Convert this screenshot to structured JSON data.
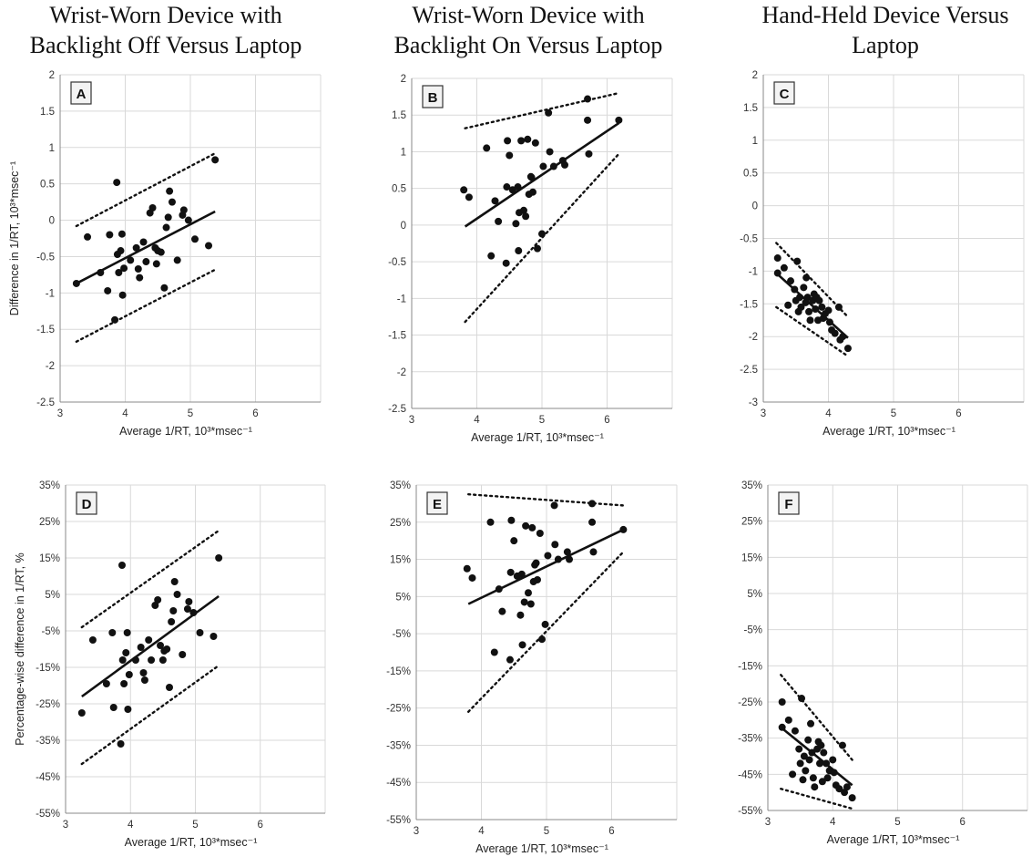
{
  "column_titles": [
    [
      "Wrist-Worn Device with",
      "Backlight Off Versus Laptop"
    ],
    [
      "Wrist-Worn Device with",
      "Backlight On Versus Laptop"
    ],
    [
      "Hand-Held Device Versus",
      "Laptop"
    ]
  ],
  "colors": {
    "points": "#111111",
    "regression": "#111111",
    "limits": "#111111",
    "grid": "#d9d9d9",
    "axis": "#888888"
  },
  "chart_data": [
    {
      "panel": "A",
      "type": "scatter",
      "xlabel": "Average 1/RT, 10³*msec⁻¹",
      "ylabel": "Difference in 1/RT, 10³*msec⁻¹",
      "xlim": [
        3,
        7
      ],
      "ylim": [
        -2.5,
        2
      ],
      "xticks": [
        3,
        4,
        5,
        6
      ],
      "yticks": [
        -2.5,
        -2,
        -1.5,
        -1,
        -0.5,
        0,
        0.5,
        1,
        1.5,
        2
      ],
      "ytick_labels": [
        "-2.5",
        "-2",
        "-1.5",
        "-1",
        "-0.5",
        "0",
        "0.5",
        "1",
        "1.5",
        "2"
      ],
      "grid": true,
      "points": [
        [
          3.25,
          -0.87
        ],
        [
          3.42,
          -0.23
        ],
        [
          3.62,
          -0.72
        ],
        [
          3.73,
          -0.97
        ],
        [
          3.76,
          -0.2
        ],
        [
          3.84,
          -1.37
        ],
        [
          3.87,
          0.52
        ],
        [
          3.88,
          -0.47
        ],
        [
          3.9,
          -0.72
        ],
        [
          3.93,
          -0.42
        ],
        [
          3.95,
          -0.19
        ],
        [
          3.96,
          -1.03
        ],
        [
          3.98,
          -0.66
        ],
        [
          4.08,
          -0.55
        ],
        [
          4.17,
          -0.38
        ],
        [
          4.2,
          -0.67
        ],
        [
          4.22,
          -0.79
        ],
        [
          4.28,
          -0.3
        ],
        [
          4.32,
          -0.57
        ],
        [
          4.38,
          0.1
        ],
        [
          4.42,
          0.17
        ],
        [
          4.46,
          -0.38
        ],
        [
          4.48,
          -0.6
        ],
        [
          4.5,
          -0.42
        ],
        [
          4.55,
          -0.44
        ],
        [
          4.6,
          -0.93
        ],
        [
          4.63,
          -0.1
        ],
        [
          4.66,
          0.04
        ],
        [
          4.68,
          0.4
        ],
        [
          4.72,
          0.25
        ],
        [
          4.8,
          -0.55
        ],
        [
          4.88,
          0.07
        ],
        [
          4.9,
          0.14
        ],
        [
          4.97,
          0.0
        ],
        [
          5.07,
          -0.26
        ],
        [
          5.28,
          -0.35
        ],
        [
          5.38,
          0.83
        ]
      ],
      "regression": [
        [
          3.25,
          -0.87
        ],
        [
          5.38,
          0.12
        ]
      ],
      "limits_upper": [
        [
          3.25,
          -0.08
        ],
        [
          5.38,
          0.92
        ]
      ],
      "limits_lower": [
        [
          3.25,
          -1.67
        ],
        [
          5.38,
          -0.68
        ]
      ]
    },
    {
      "panel": "B",
      "type": "scatter",
      "xlabel": "Average 1/RT, 10³*msec⁻¹",
      "ylabel": "",
      "xlim": [
        3,
        7
      ],
      "ylim": [
        -2.5,
        2
      ],
      "xticks": [
        3,
        4,
        5,
        6
      ],
      "yticks": [
        -2.5,
        -2,
        -1.5,
        -1,
        -0.5,
        0,
        0.5,
        1,
        1.5,
        2
      ],
      "ytick_labels": [
        "-2.5",
        "-2",
        "-1.5",
        "-1",
        "-0.5",
        "0",
        "0.5",
        "1",
        "1.5",
        "2"
      ],
      "grid": true,
      "points": [
        [
          3.8,
          0.48
        ],
        [
          3.88,
          0.38
        ],
        [
          4.15,
          1.05
        ],
        [
          4.22,
          -0.42
        ],
        [
          4.28,
          0.33
        ],
        [
          4.33,
          0.05
        ],
        [
          4.45,
          -0.52
        ],
        [
          4.46,
          0.52
        ],
        [
          4.47,
          1.15
        ],
        [
          4.5,
          0.95
        ],
        [
          4.55,
          0.48
        ],
        [
          4.6,
          0.02
        ],
        [
          4.63,
          0.52
        ],
        [
          4.64,
          -0.35
        ],
        [
          4.65,
          0.17
        ],
        [
          4.68,
          1.15
        ],
        [
          4.72,
          0.2
        ],
        [
          4.75,
          0.12
        ],
        [
          4.78,
          1.17
        ],
        [
          4.8,
          0.42
        ],
        [
          4.83,
          0.66
        ],
        [
          4.84,
          0.65
        ],
        [
          4.86,
          0.45
        ],
        [
          4.9,
          1.12
        ],
        [
          4.93,
          -0.32
        ],
        [
          5.0,
          -0.12
        ],
        [
          5.02,
          0.8
        ],
        [
          5.1,
          1.53
        ],
        [
          5.12,
          1.0
        ],
        [
          5.18,
          0.8
        ],
        [
          5.32,
          0.88
        ],
        [
          5.35,
          0.82
        ],
        [
          5.7,
          1.72
        ],
        [
          5.7,
          1.43
        ],
        [
          5.72,
          0.97
        ],
        [
          6.18,
          1.43
        ]
      ],
      "regression": [
        [
          3.82,
          -0.02
        ],
        [
          6.18,
          1.39
        ]
      ],
      "limits_upper": [
        [
          3.82,
          1.32
        ],
        [
          6.18,
          1.8
        ]
      ],
      "limits_lower": [
        [
          3.82,
          -1.32
        ],
        [
          6.18,
          0.97
        ]
      ]
    },
    {
      "panel": "C",
      "type": "scatter",
      "xlabel": "Average 1/RT, 10³*msec⁻¹",
      "ylabel": "",
      "xlim": [
        3,
        7
      ],
      "ylim": [
        -3,
        2
      ],
      "xticks": [
        3,
        4,
        5,
        6
      ],
      "yticks": [
        -3,
        -2.5,
        -2,
        -1.5,
        -1,
        -0.5,
        0,
        0.5,
        1,
        1.5,
        2
      ],
      "ytick_labels": [
        "-3",
        "-2.5",
        "-2",
        "-1.5",
        "-1",
        "-0.5",
        "0",
        "0.5",
        "1",
        "1.5",
        "2"
      ],
      "grid": true,
      "points": [
        [
          3.22,
          -0.8
        ],
        [
          3.22,
          -1.03
        ],
        [
          3.32,
          -0.95
        ],
        [
          3.38,
          -1.52
        ],
        [
          3.42,
          -1.15
        ],
        [
          3.48,
          -1.28
        ],
        [
          3.5,
          -1.45
        ],
        [
          3.52,
          -0.85
        ],
        [
          3.54,
          -1.62
        ],
        [
          3.56,
          -1.4
        ],
        [
          3.58,
          -1.55
        ],
        [
          3.62,
          -1.25
        ],
        [
          3.65,
          -1.48
        ],
        [
          3.66,
          -1.1
        ],
        [
          3.68,
          -1.4
        ],
        [
          3.7,
          -1.62
        ],
        [
          3.72,
          -1.75
        ],
        [
          3.76,
          -1.45
        ],
        [
          3.78,
          -1.35
        ],
        [
          3.8,
          -1.58
        ],
        [
          3.82,
          -1.4
        ],
        [
          3.84,
          -1.75
        ],
        [
          3.86,
          -1.45
        ],
        [
          3.9,
          -1.55
        ],
        [
          3.92,
          -1.72
        ],
        [
          3.95,
          -1.65
        ],
        [
          4.0,
          -1.6
        ],
        [
          4.02,
          -1.78
        ],
        [
          4.05,
          -1.9
        ],
        [
          4.1,
          -1.95
        ],
        [
          4.16,
          -1.55
        ],
        [
          4.18,
          -2.05
        ],
        [
          4.22,
          -2.0
        ],
        [
          4.3,
          -2.18
        ]
      ],
      "regression": [
        [
          3.2,
          -1.03
        ],
        [
          4.3,
          -2.02
        ]
      ],
      "limits_upper": [
        [
          3.2,
          -0.57
        ],
        [
          4.3,
          -1.7
        ]
      ],
      "limits_lower": [
        [
          3.2,
          -1.55
        ],
        [
          4.3,
          -2.3
        ]
      ]
    },
    {
      "panel": "D",
      "type": "scatter",
      "xlabel": "Average 1/RT, 10³*msec⁻¹",
      "ylabel": "Percentage-wise difference in 1/RT, %",
      "xlim": [
        3,
        7
      ],
      "ylim": [
        -55,
        35
      ],
      "xticks": [
        3,
        4,
        5,
        6
      ],
      "yticks": [
        -55,
        -45,
        -35,
        -25,
        -15,
        -5,
        5,
        15,
        25,
        35
      ],
      "ytick_labels": [
        "-55%",
        "-45%",
        "-35%",
        "-25%",
        "-15%",
        "-5%",
        "5%",
        "15%",
        "25%",
        "35%"
      ],
      "grid": true,
      "points": [
        [
          3.25,
          -27.5
        ],
        [
          3.42,
          -7.5
        ],
        [
          3.63,
          -19.5
        ],
        [
          3.72,
          -5.5
        ],
        [
          3.74,
          -26
        ],
        [
          3.85,
          -36
        ],
        [
          3.87,
          13
        ],
        [
          3.88,
          -13
        ],
        [
          3.9,
          -19.5
        ],
        [
          3.93,
          -11
        ],
        [
          3.95,
          -5.5
        ],
        [
          3.96,
          -26.5
        ],
        [
          3.98,
          -17
        ],
        [
          4.08,
          -13
        ],
        [
          4.16,
          -9.5
        ],
        [
          4.2,
          -16.5
        ],
        [
          4.22,
          -18.5
        ],
        [
          4.28,
          -7.5
        ],
        [
          4.32,
          -13
        ],
        [
          4.38,
          2
        ],
        [
          4.42,
          3.5
        ],
        [
          4.46,
          -9
        ],
        [
          4.5,
          -13
        ],
        [
          4.52,
          -10.5
        ],
        [
          4.56,
          -10
        ],
        [
          4.6,
          -20.5
        ],
        [
          4.63,
          -2.5
        ],
        [
          4.66,
          0.5
        ],
        [
          4.68,
          8.5
        ],
        [
          4.72,
          5
        ],
        [
          4.8,
          -11.5
        ],
        [
          4.88,
          1
        ],
        [
          4.9,
          3
        ],
        [
          4.97,
          0
        ],
        [
          5.07,
          -5.5
        ],
        [
          5.28,
          -6.5
        ],
        [
          5.36,
          15
        ]
      ],
      "regression": [
        [
          3.25,
          -23
        ],
        [
          5.36,
          4.5
        ]
      ],
      "limits_upper": [
        [
          3.25,
          -4
        ],
        [
          5.36,
          22.5
        ]
      ],
      "limits_lower": [
        [
          3.25,
          -41.5
        ],
        [
          5.36,
          -14.5
        ]
      ]
    },
    {
      "panel": "E",
      "type": "scatter",
      "xlabel": "Average 1/RT, 10³*msec⁻¹",
      "ylabel": "",
      "xlim": [
        3,
        7
      ],
      "ylim": [
        -55,
        35
      ],
      "xticks": [
        3,
        4,
        5,
        6
      ],
      "yticks": [
        -55,
        -45,
        -35,
        -25,
        -15,
        -5,
        5,
        15,
        25,
        35
      ],
      "ytick_labels": [
        "-55%",
        "-45%",
        "-35%",
        "-25%",
        "-15%",
        "-5%",
        "5%",
        "15%",
        "25%",
        "35%"
      ],
      "grid": true,
      "points": [
        [
          3.78,
          12.5
        ],
        [
          3.86,
          10
        ],
        [
          4.14,
          25
        ],
        [
          4.2,
          -10
        ],
        [
          4.27,
          7
        ],
        [
          4.32,
          1
        ],
        [
          4.44,
          -12
        ],
        [
          4.45,
          11.5
        ],
        [
          4.46,
          25.5
        ],
        [
          4.5,
          20
        ],
        [
          4.55,
          10.5
        ],
        [
          4.6,
          0
        ],
        [
          4.62,
          11
        ],
        [
          4.63,
          -8
        ],
        [
          4.66,
          3.5
        ],
        [
          4.68,
          24
        ],
        [
          4.72,
          6
        ],
        [
          4.76,
          3
        ],
        [
          4.78,
          23.5
        ],
        [
          4.8,
          9
        ],
        [
          4.82,
          13.5
        ],
        [
          4.84,
          14
        ],
        [
          4.86,
          9.5
        ],
        [
          4.9,
          22
        ],
        [
          4.93,
          -6.5
        ],
        [
          4.98,
          -2.5
        ],
        [
          5.02,
          16
        ],
        [
          5.12,
          29.5
        ],
        [
          5.13,
          19
        ],
        [
          5.18,
          15
        ],
        [
          5.32,
          17
        ],
        [
          5.35,
          15
        ],
        [
          5.7,
          30
        ],
        [
          5.7,
          25
        ],
        [
          5.72,
          17
        ],
        [
          6.18,
          23
        ]
      ],
      "regression": [
        [
          3.8,
          3
        ],
        [
          6.18,
          23
        ]
      ],
      "limits_upper": [
        [
          3.8,
          32.5
        ],
        [
          6.18,
          29.5
        ]
      ],
      "limits_lower": [
        [
          3.8,
          -26
        ],
        [
          6.18,
          17
        ]
      ]
    },
    {
      "panel": "F",
      "type": "scatter",
      "xlabel": "Average 1/RT, 10³*msec⁻¹",
      "ylabel": "",
      "xlim": [
        3,
        7
      ],
      "ylim": [
        -55,
        35
      ],
      "xticks": [
        3,
        4,
        5,
        6
      ],
      "yticks": [
        -55,
        -45,
        -35,
        -25,
        -15,
        -5,
        5,
        15,
        25,
        35
      ],
      "ytick_labels": [
        "-55%",
        "-45%",
        "-35%",
        "-25%",
        "-15%",
        "-5%",
        "5%",
        "15%",
        "25%",
        "35%"
      ],
      "grid": true,
      "points": [
        [
          3.22,
          -25
        ],
        [
          3.22,
          -32
        ],
        [
          3.32,
          -30
        ],
        [
          3.38,
          -45
        ],
        [
          3.42,
          -33
        ],
        [
          3.48,
          -38
        ],
        [
          3.5,
          -42
        ],
        [
          3.52,
          -24
        ],
        [
          3.54,
          -46.5
        ],
        [
          3.56,
          -40
        ],
        [
          3.58,
          -44
        ],
        [
          3.62,
          -35.5
        ],
        [
          3.64,
          -41
        ],
        [
          3.66,
          -31
        ],
        [
          3.68,
          -39
        ],
        [
          3.7,
          -46
        ],
        [
          3.72,
          -48.5
        ],
        [
          3.76,
          -38
        ],
        [
          3.78,
          -36
        ],
        [
          3.8,
          -42
        ],
        [
          3.82,
          -37
        ],
        [
          3.84,
          -47
        ],
        [
          3.86,
          -39
        ],
        [
          3.9,
          -42
        ],
        [
          3.92,
          -46
        ],
        [
          3.95,
          -44
        ],
        [
          4.0,
          -41
        ],
        [
          4.02,
          -44.5
        ],
        [
          4.05,
          -48
        ],
        [
          4.1,
          -49
        ],
        [
          4.15,
          -37
        ],
        [
          4.18,
          -50
        ],
        [
          4.22,
          -48.5
        ],
        [
          4.3,
          -51.5
        ]
      ],
      "regression": [
        [
          3.2,
          -32
        ],
        [
          4.3,
          -48
        ]
      ],
      "limits_upper": [
        [
          3.2,
          -17.5
        ],
        [
          4.3,
          -41
        ]
      ],
      "limits_lower": [
        [
          3.2,
          -49
        ],
        [
          4.3,
          -54.5
        ]
      ]
    }
  ]
}
